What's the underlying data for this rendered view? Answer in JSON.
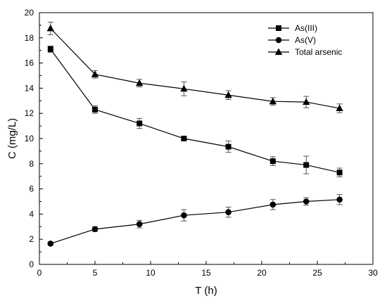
{
  "chart_data": {
    "type": "line",
    "title": "",
    "xlabel": "T (h)",
    "ylabel": "C (mg/L)",
    "xlim": [
      0,
      30
    ],
    "ylim": [
      0,
      20
    ],
    "xticks": [
      0,
      5,
      10,
      15,
      20,
      25,
      30
    ],
    "yticks": [
      0,
      2,
      4,
      6,
      8,
      10,
      12,
      14,
      16,
      18,
      20
    ],
    "grid": false,
    "legend_position": "top-right",
    "x": [
      1,
      5,
      9,
      13,
      17,
      21,
      24,
      27
    ],
    "series": [
      {
        "name": "As(III)",
        "marker": "square",
        "values": [
          17.1,
          12.3,
          11.2,
          10.0,
          9.35,
          8.2,
          7.9,
          7.3
        ],
        "errors": [
          0.25,
          0.3,
          0.4,
          0.15,
          0.45,
          0.35,
          0.7,
          0.35
        ]
      },
      {
        "name": "As(V)",
        "marker": "circle",
        "values": [
          1.65,
          2.8,
          3.2,
          3.9,
          4.15,
          4.75,
          5.0,
          5.15
        ],
        "errors": [
          0.1,
          0.2,
          0.3,
          0.45,
          0.4,
          0.4,
          0.3,
          0.4
        ]
      },
      {
        "name": "Total arsenic",
        "marker": "triangle",
        "values": [
          18.75,
          15.1,
          14.4,
          13.95,
          13.45,
          12.95,
          12.9,
          12.4
        ],
        "errors": [
          0.5,
          0.3,
          0.3,
          0.55,
          0.35,
          0.3,
          0.45,
          0.35
        ]
      }
    ]
  }
}
